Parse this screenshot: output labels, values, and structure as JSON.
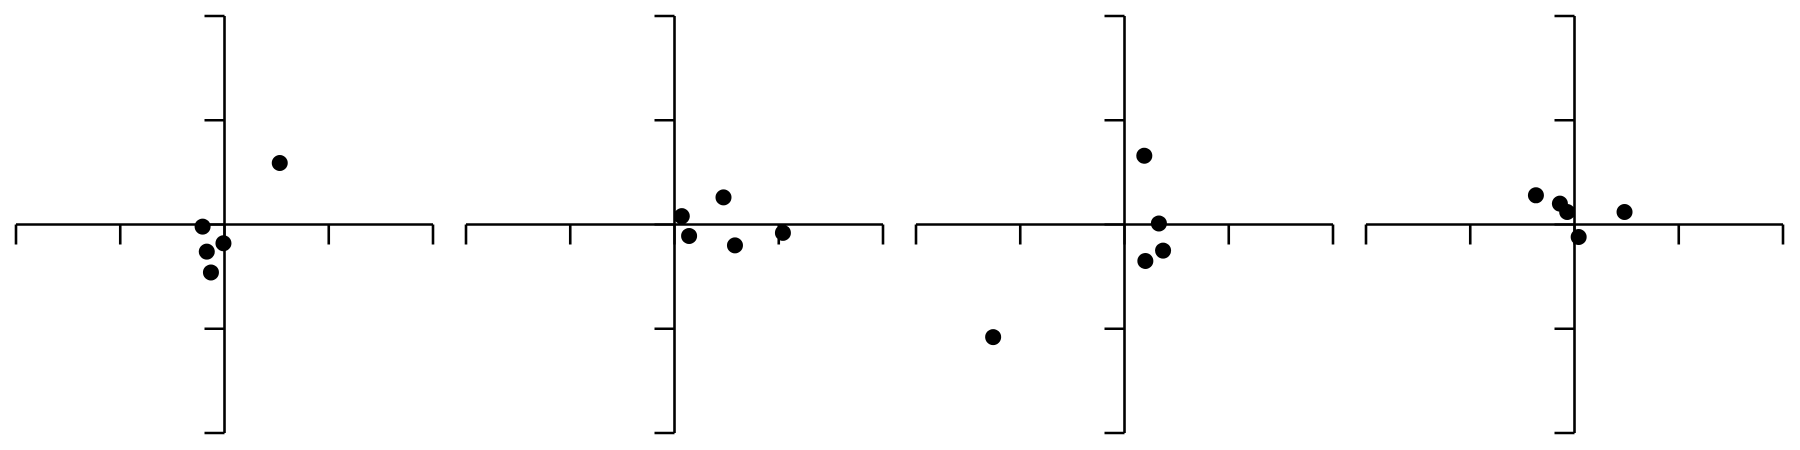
{
  "chart_data": [
    {
      "type": "scatter",
      "xlim": [
        -2,
        2
      ],
      "ylim": [
        -2,
        2
      ],
      "axes_cross_at_origin": true,
      "ticks": [
        -2,
        -1,
        0,
        1,
        2
      ],
      "tick_labels": false,
      "grid": false,
      "marker_color": "#000000",
      "points": [
        {
          "x": 0.53,
          "y": 0.59
        },
        {
          "x": -0.21,
          "y": -0.02
        },
        {
          "x": -0.17,
          "y": -0.26
        },
        {
          "x": -0.01,
          "y": -0.18
        },
        {
          "x": -0.13,
          "y": -0.46
        }
      ]
    },
    {
      "type": "scatter",
      "xlim": [
        -2,
        2
      ],
      "ylim": [
        -2,
        2
      ],
      "axes_cross_at_origin": true,
      "ticks": [
        -2,
        -1,
        0,
        1,
        2
      ],
      "tick_labels": false,
      "grid": false,
      "marker_color": "#000000",
      "points": [
        {
          "x": 0.07,
          "y": 0.08
        },
        {
          "x": 0.14,
          "y": -0.11
        },
        {
          "x": 0.47,
          "y": 0.26
        },
        {
          "x": 0.58,
          "y": -0.2
        },
        {
          "x": 1.04,
          "y": -0.08
        }
      ]
    },
    {
      "type": "scatter",
      "xlim": [
        -2,
        2
      ],
      "ylim": [
        -2,
        2
      ],
      "axes_cross_at_origin": true,
      "ticks": [
        -2,
        -1,
        0,
        1,
        2
      ],
      "tick_labels": false,
      "grid": false,
      "marker_color": "#000000",
      "points": [
        {
          "x": 0.19,
          "y": 0.66
        },
        {
          "x": 0.33,
          "y": 0.01
        },
        {
          "x": 0.37,
          "y": -0.25
        },
        {
          "x": 0.2,
          "y": -0.35
        },
        {
          "x": -1.26,
          "y": -1.08
        }
      ]
    },
    {
      "type": "scatter",
      "xlim": [
        -2,
        2
      ],
      "ylim": [
        -2,
        2
      ],
      "axes_cross_at_origin": true,
      "ticks": [
        -2,
        -1,
        0,
        1,
        2
      ],
      "tick_labels": false,
      "grid": false,
      "marker_color": "#000000",
      "points": [
        {
          "x": -0.37,
          "y": 0.28
        },
        {
          "x": -0.14,
          "y": 0.2
        },
        {
          "x": -0.07,
          "y": 0.12
        },
        {
          "x": 0.48,
          "y": 0.12
        },
        {
          "x": 0.04,
          "y": -0.12
        }
      ]
    }
  ]
}
